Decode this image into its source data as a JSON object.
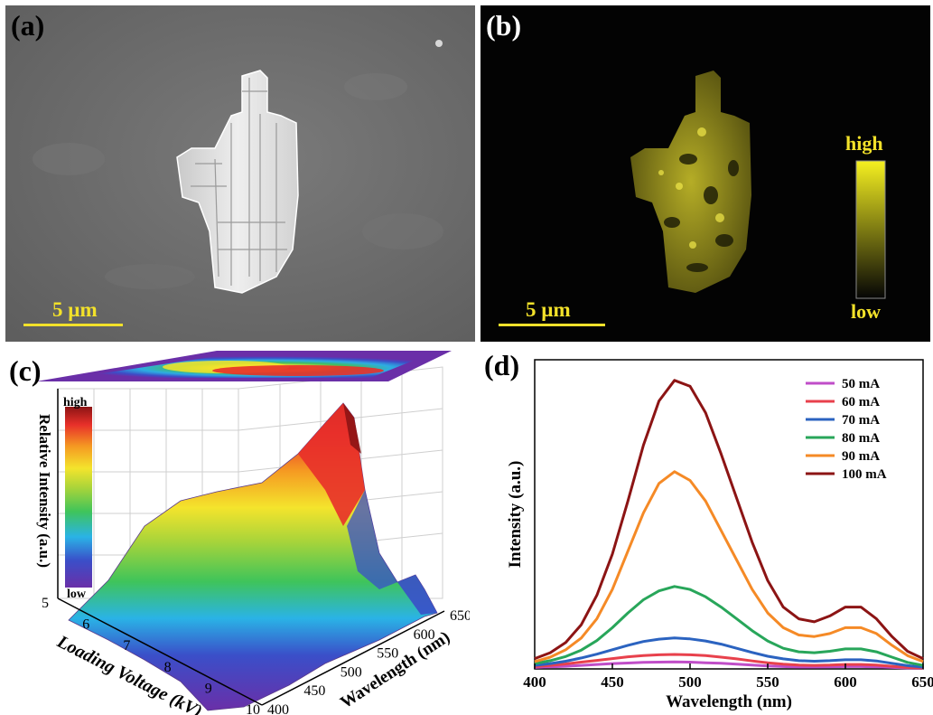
{
  "panels": {
    "a": {
      "label": "(a)",
      "scale_text": "5 µm"
    },
    "b": {
      "label": "(b)",
      "scale_text": "5 µm",
      "colorbar_high": "high",
      "colorbar_low": "low"
    },
    "c": {
      "label": "(c)",
      "colorbar_high": "high",
      "colorbar_low": "low"
    },
    "d": {
      "label": "(d)"
    }
  },
  "colors": {
    "scale": "#f2e12a"
  },
  "chart_data": [
    {
      "type": "area",
      "panel": "c",
      "zlabel": "Relative Intensity (a.u.)",
      "xlabel": "Loading Voltage (kV)",
      "ylabel": "Wavelength (nm)",
      "x_ticks": [
        "5",
        "6",
        "7",
        "8",
        "9",
        "10"
      ],
      "y_ticks": [
        "400",
        "450",
        "500",
        "550",
        "600",
        "650"
      ],
      "xlim": [
        5,
        10
      ],
      "ylim": [
        400,
        650
      ],
      "colormap": "rainbow"
    },
    {
      "type": "line",
      "panel": "d",
      "xlabel": "Wavelength (nm)",
      "ylabel": "Intensity (a.u.)",
      "xlim": [
        400,
        650
      ],
      "ylim": [
        0,
        1.05
      ],
      "x_ticks": [
        400,
        450,
        500,
        550,
        600,
        650
      ],
      "legend": "top-right",
      "x": [
        400,
        410,
        420,
        430,
        440,
        450,
        460,
        470,
        480,
        490,
        500,
        510,
        520,
        530,
        540,
        550,
        560,
        570,
        580,
        590,
        600,
        610,
        620,
        630,
        640,
        650
      ],
      "series": [
        {
          "name": "50 mA",
          "color": "#c04ec8",
          "values": [
            0.005,
            0.007,
            0.009,
            0.012,
            0.015,
            0.018,
            0.02,
            0.022,
            0.023,
            0.024,
            0.023,
            0.021,
            0.019,
            0.016,
            0.013,
            0.01,
            0.008,
            0.006,
            0.006,
            0.007,
            0.008,
            0.008,
            0.007,
            0.005,
            0.003,
            0.002
          ]
        },
        {
          "name": "60 mA",
          "color": "#e8414c",
          "values": [
            0.008,
            0.012,
            0.017,
            0.023,
            0.029,
            0.035,
            0.041,
            0.045,
            0.048,
            0.049,
            0.048,
            0.045,
            0.04,
            0.034,
            0.027,
            0.021,
            0.016,
            0.013,
            0.012,
            0.013,
            0.015,
            0.015,
            0.013,
            0.009,
            0.005,
            0.003
          ]
        },
        {
          "name": "70 mA",
          "color": "#2b63c0",
          "values": [
            0.012,
            0.018,
            0.026,
            0.037,
            0.05,
            0.065,
            0.08,
            0.093,
            0.101,
            0.105,
            0.102,
            0.095,
            0.084,
            0.07,
            0.056,
            0.043,
            0.034,
            0.028,
            0.026,
            0.028,
            0.031,
            0.031,
            0.027,
            0.019,
            0.011,
            0.006
          ]
        },
        {
          "name": "80 mA",
          "color": "#28a65a",
          "values": [
            0.018,
            0.028,
            0.042,
            0.064,
            0.096,
            0.14,
            0.19,
            0.235,
            0.265,
            0.28,
            0.27,
            0.245,
            0.21,
            0.17,
            0.13,
            0.095,
            0.07,
            0.058,
            0.055,
            0.06,
            0.068,
            0.068,
            0.058,
            0.04,
            0.022,
            0.012
          ]
        },
        {
          "name": "90 mA",
          "color": "#f58a26",
          "values": [
            0.025,
            0.04,
            0.065,
            0.105,
            0.17,
            0.27,
            0.4,
            0.53,
            0.63,
            0.67,
            0.64,
            0.57,
            0.47,
            0.37,
            0.27,
            0.19,
            0.14,
            0.115,
            0.11,
            0.12,
            0.14,
            0.14,
            0.12,
            0.08,
            0.045,
            0.025
          ]
        },
        {
          "name": "100 mA",
          "color": "#8c1414",
          "values": [
            0.035,
            0.055,
            0.09,
            0.15,
            0.25,
            0.39,
            0.57,
            0.76,
            0.91,
            0.98,
            0.96,
            0.87,
            0.73,
            0.58,
            0.43,
            0.3,
            0.21,
            0.17,
            0.16,
            0.18,
            0.21,
            0.21,
            0.17,
            0.11,
            0.06,
            0.035
          ]
        }
      ]
    }
  ]
}
